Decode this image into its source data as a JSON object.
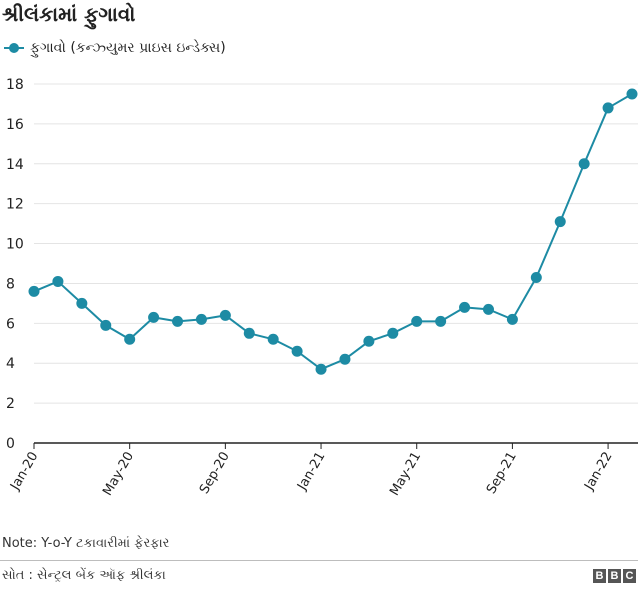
{
  "header": {
    "title": "શ્રીલંકામાં ફુગાવો"
  },
  "legend": {
    "label": "ફુગાવો (કન્ઝ્યુમર પ્રાઇસ ઇન્ડેક્સ)"
  },
  "colors": {
    "series": "#1d8ba4",
    "axis": "#222222",
    "grid": "#e4e4e4"
  },
  "chart_data": {
    "type": "line",
    "title": "શ્રીલંકામાં ફુગાવો",
    "xlabel": "",
    "ylabel": "",
    "ylim": [
      0,
      18
    ],
    "y_ticks": [
      0,
      2,
      4,
      6,
      8,
      10,
      12,
      14,
      16,
      18
    ],
    "x_ticks": [
      {
        "label": "Jan-20",
        "index": 0
      },
      {
        "label": "May-20",
        "index": 4
      },
      {
        "label": "Sep-20",
        "index": 8
      },
      {
        "label": "Jan-21",
        "index": 12
      },
      {
        "label": "May-21",
        "index": 16
      },
      {
        "label": "Sep-21",
        "index": 20
      },
      {
        "label": "Jan-22",
        "index": 24
      }
    ],
    "categories": [
      "Jan-20",
      "Feb-20",
      "Mar-20",
      "Apr-20",
      "May-20",
      "Jun-20",
      "Jul-20",
      "Aug-20",
      "Sep-20",
      "Oct-20",
      "Nov-20",
      "Dec-20",
      "Jan-21",
      "Feb-21",
      "Mar-21",
      "Apr-21",
      "May-21",
      "Jun-21",
      "Jul-21",
      "Aug-21",
      "Sep-21",
      "Oct-21",
      "Nov-21",
      "Dec-21",
      "Jan-22",
      "Feb-22"
    ],
    "series": [
      {
        "name": "ફુગાવો (કન્ઝ્યુમર પ્રાઇસ ઇન્ડેક્સ)",
        "values": [
          7.6,
          8.1,
          7.0,
          5.9,
          5.2,
          6.3,
          6.1,
          6.2,
          6.4,
          5.5,
          5.2,
          4.6,
          3.7,
          4.2,
          5.1,
          5.5,
          6.1,
          6.1,
          6.8,
          6.7,
          6.2,
          8.3,
          11.1,
          14.0,
          16.8,
          17.5
        ]
      }
    ],
    "grid": true,
    "legend_position": "top-left"
  },
  "footer": {
    "note": "Note: Y-o-Y ટકાવારીમાં ફેરફાર",
    "source": "સોત : સેન્ટ્રલ બેંક ઑફ શ્રીલંકા",
    "brand": [
      "B",
      "B",
      "C"
    ]
  }
}
